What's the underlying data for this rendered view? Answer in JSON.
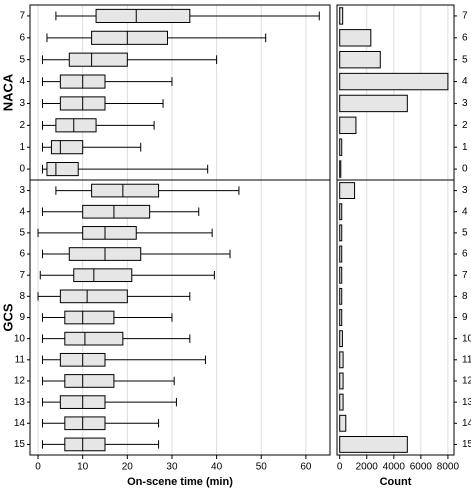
{
  "chart_data": [
    {
      "type": "box",
      "panel_label": "NACA",
      "categories": [
        "7",
        "6",
        "5",
        "4",
        "3",
        "2",
        "1",
        "0"
      ],
      "values": [
        [
          4,
          13,
          22,
          34,
          63
        ],
        [
          2,
          12,
          20,
          29,
          51
        ],
        [
          1,
          7,
          12,
          20,
          40
        ],
        [
          1,
          5,
          10,
          15,
          30
        ],
        [
          1,
          5,
          10,
          15,
          28
        ],
        [
          1,
          4,
          8,
          13,
          26
        ],
        [
          1,
          3,
          5,
          10,
          23
        ],
        [
          1,
          2,
          4,
          9,
          38
        ]
      ],
      "color": "#e6e6e6"
    },
    {
      "type": "bar",
      "categories": [
        "7",
        "6",
        "5",
        "4",
        "3",
        "2",
        "1",
        "0"
      ],
      "values": [
        220,
        2300,
        3000,
        8000,
        5000,
        1200,
        150,
        80
      ],
      "color": "#e6e6e6"
    },
    {
      "type": "box",
      "panel_label": "GCS",
      "categories": [
        "3",
        "4",
        "5",
        "6",
        "7",
        "8",
        "9",
        "10",
        "11",
        "12",
        "13",
        "14",
        "15"
      ],
      "values": [
        [
          4,
          12,
          19,
          27,
          45
        ],
        [
          1,
          10,
          17,
          25,
          36
        ],
        [
          0,
          10,
          15,
          22,
          39
        ],
        [
          1,
          7,
          15,
          23,
          43
        ],
        [
          0.5,
          8,
          12.5,
          21,
          39.5
        ],
        [
          0,
          5,
          11,
          20,
          34
        ],
        [
          1,
          6,
          10,
          17,
          30
        ],
        [
          1,
          6,
          10.5,
          19,
          34
        ],
        [
          1,
          5,
          10,
          15,
          37.5
        ],
        [
          1,
          6,
          10,
          17,
          30.5
        ],
        [
          1,
          5,
          10,
          15,
          31
        ],
        [
          1,
          6,
          10,
          15,
          27
        ],
        [
          1,
          6,
          10,
          15,
          27
        ]
      ],
      "color": "#e6e6e6",
      "x_label": "On-scene time (min)",
      "xlim": [
        -1.8,
        65.4
      ],
      "xticks": [
        0,
        10,
        20,
        30,
        40,
        50,
        60
      ],
      "grid": true
    },
    {
      "type": "bar",
      "categories": [
        "3",
        "4",
        "5",
        "6",
        "7",
        "8",
        "9",
        "10",
        "11",
        "12",
        "13",
        "14",
        "15"
      ],
      "values": [
        1100,
        150,
        150,
        150,
        150,
        150,
        150,
        200,
        250,
        250,
        250,
        450,
        5000
      ],
      "color": "#e6e6e6",
      "x_label": "Count",
      "xlim": [
        -200,
        8450
      ],
      "xticks": [
        0,
        2000,
        4000,
        6000,
        8000
      ],
      "grid": true
    }
  ]
}
